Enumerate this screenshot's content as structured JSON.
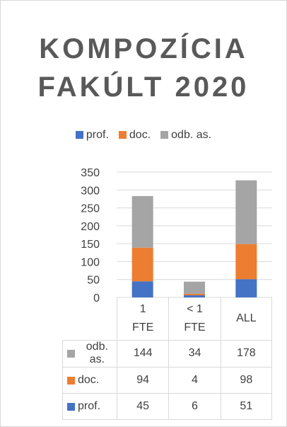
{
  "chart_data": {
    "type": "stacked_bar",
    "title": "KOMPOZÍCIA FAKÚLT 2020",
    "categories": [
      "1 FTE",
      "< 1 FTE",
      "ALL"
    ],
    "series": [
      {
        "name": "prof.",
        "color": "#4472c4",
        "values": [
          45,
          6,
          51
        ]
      },
      {
        "name": "doc.",
        "color": "#ed7d31",
        "values": [
          94,
          4,
          98
        ]
      },
      {
        "name": "odb. as.",
        "color": "#a5a5a5",
        "values": [
          144,
          34,
          178
        ]
      }
    ],
    "ylim": [
      0,
      350
    ],
    "yticks": [
      0,
      50,
      100,
      150,
      200,
      250,
      300,
      350
    ],
    "grid": true,
    "legend": "top"
  }
}
